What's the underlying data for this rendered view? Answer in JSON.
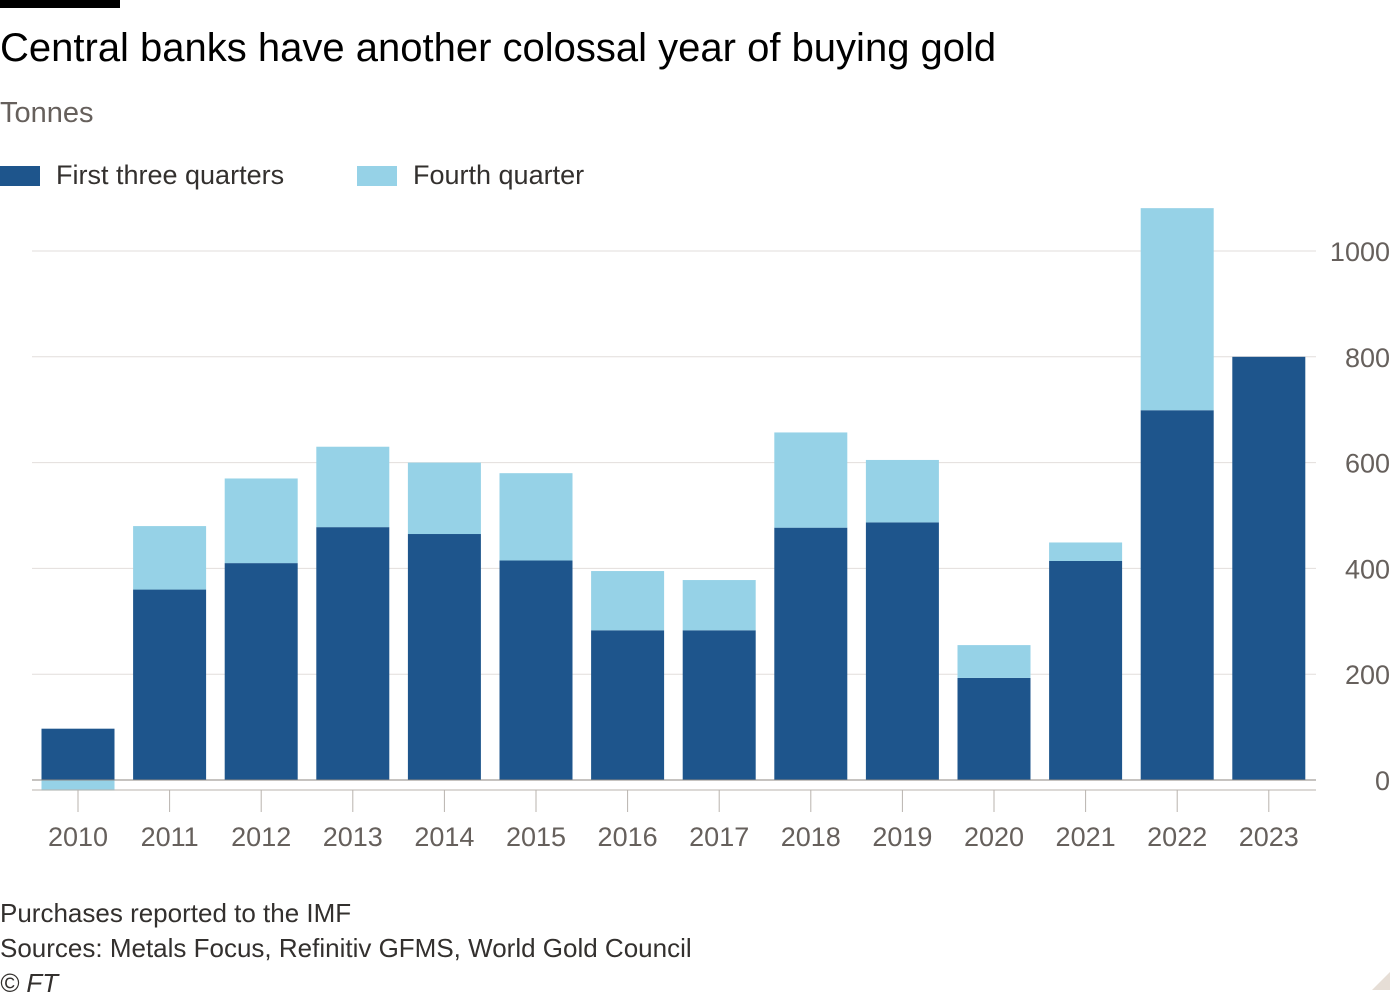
{
  "header": {
    "title": "Central banks have another colossal year of buying gold",
    "subtitle": "Tonnes"
  },
  "footer": {
    "note": "Purchases reported to the IMF",
    "sources": "Sources: Metals Focus, Refinitiv GFMS, World Gold Council",
    "credit": "© FT"
  },
  "chart_data": {
    "type": "bar",
    "stacked": true,
    "categories": [
      "2010",
      "2011",
      "2012",
      "2013",
      "2014",
      "2015",
      "2016",
      "2017",
      "2018",
      "2019",
      "2020",
      "2021",
      "2022",
      "2023"
    ],
    "series": [
      {
        "name": "First three quarters",
        "color": "#1e558c",
        "values": [
          97,
          360,
          410,
          478,
          465,
          415,
          283,
          283,
          477,
          487,
          193,
          414,
          699,
          800
        ]
      },
      {
        "name": "Fourth quarter",
        "color": "#96d2e7",
        "values": [
          -20,
          120,
          160,
          152,
          135,
          165,
          112,
          95,
          180,
          118,
          62,
          35,
          382,
          0
        ]
      }
    ],
    "yticks": [
      0,
      200,
      400,
      600,
      800,
      1000
    ],
    "ylim": [
      -30,
      1100
    ],
    "y_axis_side": "right",
    "grid": true,
    "legend_position": "top-left"
  }
}
